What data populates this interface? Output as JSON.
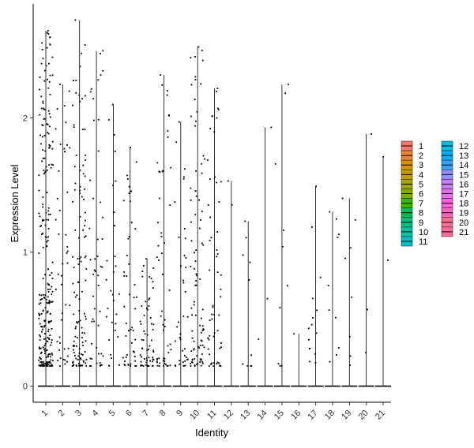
{
  "chart_data": {
    "type": "violin-jitter",
    "title": "",
    "xlabel": "Identity",
    "ylabel": "Expression Level",
    "categories": [
      "1",
      "2",
      "3",
      "4",
      "5",
      "6",
      "7",
      "8",
      "9",
      "10",
      "11",
      "12",
      "13",
      "14",
      "15",
      "16",
      "17",
      "18",
      "19",
      "20",
      "21"
    ],
    "ylim": [
      -0.12,
      2.85
    ],
    "yticks": [
      0,
      1,
      2
    ],
    "ytick_labels": [
      "0",
      "1",
      "2"
    ],
    "max_values": [
      2.65,
      2.25,
      2.73,
      2.5,
      2.1,
      1.78,
      0.95,
      2.32,
      1.97,
      2.53,
      2.22,
      1.53,
      1.23,
      1.93,
      2.25,
      0.39,
      1.49,
      1.3,
      1.4,
      1.88,
      1.71
    ],
    "expressing_counts": [
      260,
      45,
      120,
      50,
      30,
      50,
      60,
      55,
      40,
      90,
      60,
      2,
      10,
      3,
      10,
      1,
      15,
      10,
      8,
      3,
      2
    ],
    "legend": {
      "position": "right",
      "columns": 2,
      "entries": [
        "1",
        "2",
        "3",
        "4",
        "5",
        "6",
        "7",
        "8",
        "9",
        "10",
        "11",
        "12",
        "13",
        "14",
        "15",
        "16",
        "17",
        "18",
        "19",
        "20",
        "21"
      ],
      "colors": [
        "#F8766D",
        "#EB8335",
        "#D89000",
        "#C09B00",
        "#A3A500",
        "#7CAE00",
        "#39B600",
        "#00BB4E",
        "#00BF7D",
        "#00C1A3",
        "#00BFC4",
        "#00BAE0",
        "#00B0F6",
        "#35A2FF",
        "#9590FF",
        "#C77CFF",
        "#E76BF3",
        "#FA62DB",
        "#FF62BC",
        "#FF6C91",
        "#FF6A98"
      ]
    },
    "grid": false
  }
}
